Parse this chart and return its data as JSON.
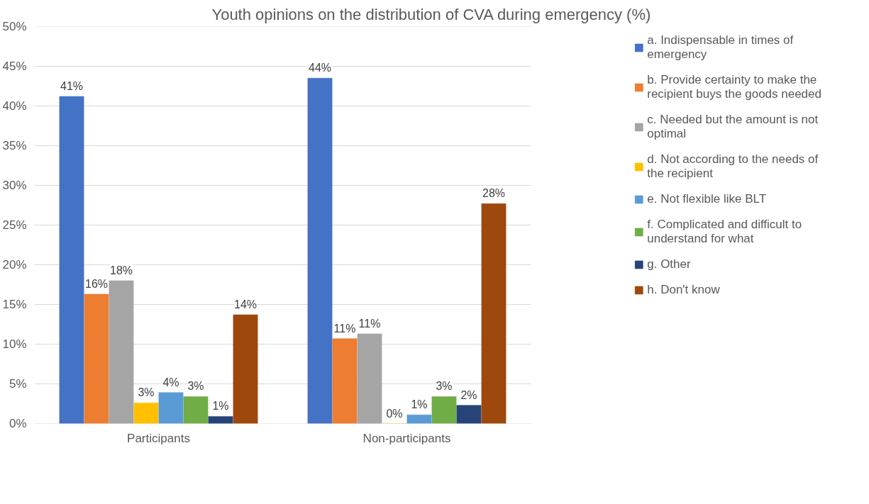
{
  "chart_data": {
    "type": "bar",
    "title": "Youth opinions on the distribution of CVA during emergency (%)",
    "categories": [
      "Participants",
      "Non-participants"
    ],
    "series": [
      {
        "name": "a. Indispensable in times of emergency",
        "color": "#4472c4",
        "values": [
          41.2,
          43.5
        ],
        "value_labels": [
          "41%",
          "44%"
        ]
      },
      {
        "name": "b. Provide certainty to make the recipient buys the goods needed",
        "color": "#ed7d31",
        "values": [
          16.3,
          10.7
        ],
        "value_labels": [
          "16%",
          "11%"
        ]
      },
      {
        "name": "c. Needed but the amount is not optimal",
        "color": "#a5a5a5",
        "values": [
          18.0,
          11.3
        ],
        "value_labels": [
          "18%",
          "11%"
        ]
      },
      {
        "name": "d. Not according to the needs of the recipient",
        "color": "#ffc000",
        "values": [
          2.6,
          0
        ],
        "value_labels": [
          "3%",
          "0%"
        ]
      },
      {
        "name": "e. Not flexible like BLT",
        "color": "#5b9bd5",
        "values": [
          3.9,
          1.1
        ],
        "value_labels": [
          "4%",
          "1%"
        ]
      },
      {
        "name": "f. Complicated and difficult to understand for what",
        "color": "#70ad47",
        "values": [
          3.4,
          3.4
        ],
        "value_labels": [
          "3%",
          "3%"
        ]
      },
      {
        "name": "g. Other",
        "color": "#264478",
        "values": [
          0.9,
          2.3
        ],
        "value_labels": [
          "1%",
          "2%"
        ]
      },
      {
        "name": "h. Don't know",
        "color": "#9e480e",
        "values": [
          13.7,
          27.7
        ],
        "value_labels": [
          "14%",
          "28%"
        ]
      }
    ],
    "ylim": [
      0,
      50
    ],
    "yticks": [
      {
        "value": 0,
        "label": "0%"
      },
      {
        "value": 5,
        "label": "5%"
      },
      {
        "value": 10,
        "label": "10%"
      },
      {
        "value": 15,
        "label": "15%"
      },
      {
        "value": 20,
        "label": "20%"
      },
      {
        "value": 25,
        "label": "25%"
      },
      {
        "value": 30,
        "label": "30%"
      },
      {
        "value": 35,
        "label": "35%"
      },
      {
        "value": 40,
        "label": "40%"
      },
      {
        "value": 45,
        "label": "45%"
      },
      {
        "value": 50,
        "label": "50%"
      }
    ],
    "grid": "y",
    "legend": "right"
  }
}
